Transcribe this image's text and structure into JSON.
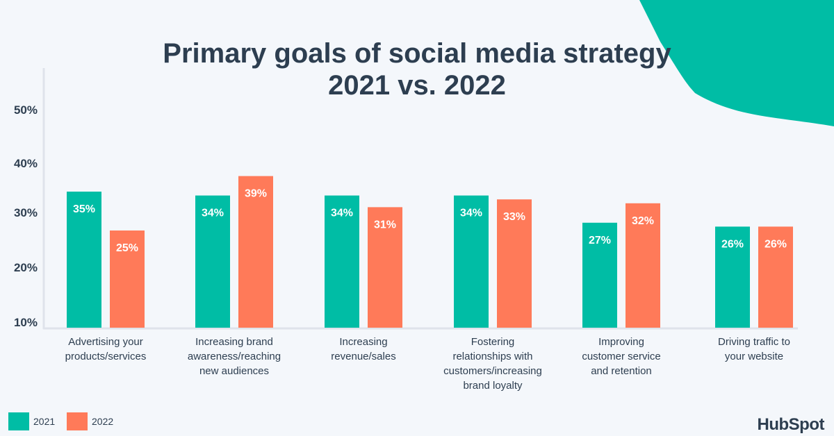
{
  "chart_data": {
    "type": "bar",
    "title": "Primary goals of social media strategy",
    "subtitle": "2021 vs. 2022",
    "categories": [
      [
        "Advertising your",
        "products/services"
      ],
      [
        "Increasing brand",
        "awareness/reaching",
        "new audiences"
      ],
      [
        "Increasing",
        "revenue/sales"
      ],
      [
        "Fostering",
        "relationships with",
        "customers/increasing",
        "brand loyalty"
      ],
      [
        "Improving",
        "customer service",
        "and retention"
      ],
      [
        "Driving traffic to",
        "your website"
      ]
    ],
    "series": [
      {
        "name": "2021",
        "color": "#00bda5",
        "values": [
          35,
          34,
          34,
          34,
          27,
          26
        ]
      },
      {
        "name": "2022",
        "color": "#ff7a59",
        "values": [
          25,
          39,
          31,
          33,
          32,
          26
        ]
      }
    ],
    "yticks": [
      "10%",
      "20%",
      "30%",
      "40%",
      "50%"
    ],
    "ylim": [
      10,
      50
    ],
    "legend": "bottom-left"
  },
  "brand": {
    "logo": "HubSpot",
    "accent": "#00bda5"
  }
}
